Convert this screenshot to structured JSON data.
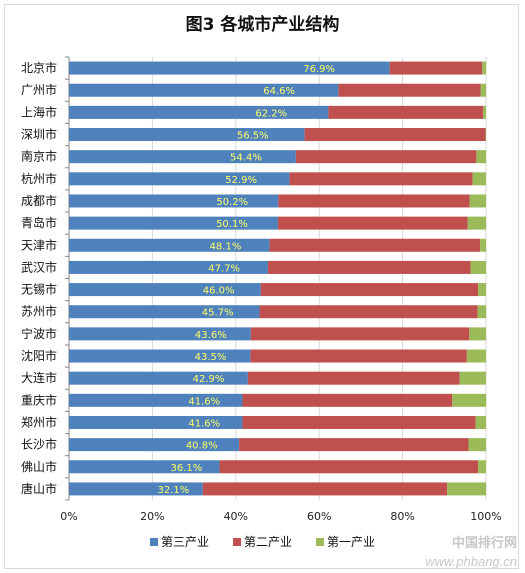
{
  "chart_data": {
    "type": "bar",
    "orientation": "horizontal",
    "stacked": true,
    "title": "图3 各城市产业结构",
    "categories": [
      "北京市",
      "广州市",
      "上海市",
      "深圳市",
      "南京市",
      "杭州市",
      "成都市",
      "青岛市",
      "天津市",
      "武汉市",
      "无锡市",
      "苏州市",
      "宁波市",
      "沈阳市",
      "大连市",
      "重庆市",
      "郑州市",
      "长沙市",
      "佛山市",
      "唐山市"
    ],
    "series": [
      {
        "name": "第三产业",
        "color": "#4f81bd",
        "values": [
          76.9,
          64.6,
          62.2,
          56.5,
          54.4,
          52.9,
          50.2,
          50.1,
          48.1,
          47.7,
          46.0,
          45.7,
          43.6,
          43.5,
          42.9,
          41.6,
          41.6,
          40.8,
          36.1,
          32.1
        ]
      },
      {
        "name": "第二产业",
        "color": "#c0504d",
        "values": [
          22.2,
          34.1,
          37.1,
          43.4,
          43.3,
          43.9,
          45.9,
          45.5,
          50.5,
          48.6,
          52.1,
          52.3,
          52.4,
          51.9,
          50.8,
          50.3,
          55.9,
          55.0,
          62.0,
          58.6
        ]
      },
      {
        "name": "第一产业",
        "color": "#9bbb59",
        "values": [
          0.9,
          1.3,
          0.7,
          0.1,
          2.3,
          3.2,
          3.9,
          4.4,
          1.4,
          3.7,
          1.9,
          2.0,
          4.0,
          4.6,
          6.3,
          8.1,
          2.5,
          4.2,
          1.9,
          9.3
        ]
      }
    ],
    "data_labels": [
      "76.9%",
      "64.6%",
      "62.2%",
      "56.5%",
      "54.4%",
      "52.9%",
      "50.2%",
      "50.1%",
      "48.1%",
      "47.7%",
      "46.0%",
      "45.7%",
      "43.6%",
      "43.5%",
      "42.9%",
      "41.6%",
      "41.6%",
      "40.8%",
      "36.1%",
      "32.1%"
    ],
    "data_label_color": "#ffff66",
    "xlim": [
      0,
      100
    ],
    "xticks": [
      "0%",
      "20%",
      "40%",
      "60%",
      "80%",
      "100%"
    ],
    "grid": true,
    "legend_position": "bottom"
  },
  "watermark": {
    "line1": "中国排行网",
    "line2": "www.phbang.cn"
  }
}
